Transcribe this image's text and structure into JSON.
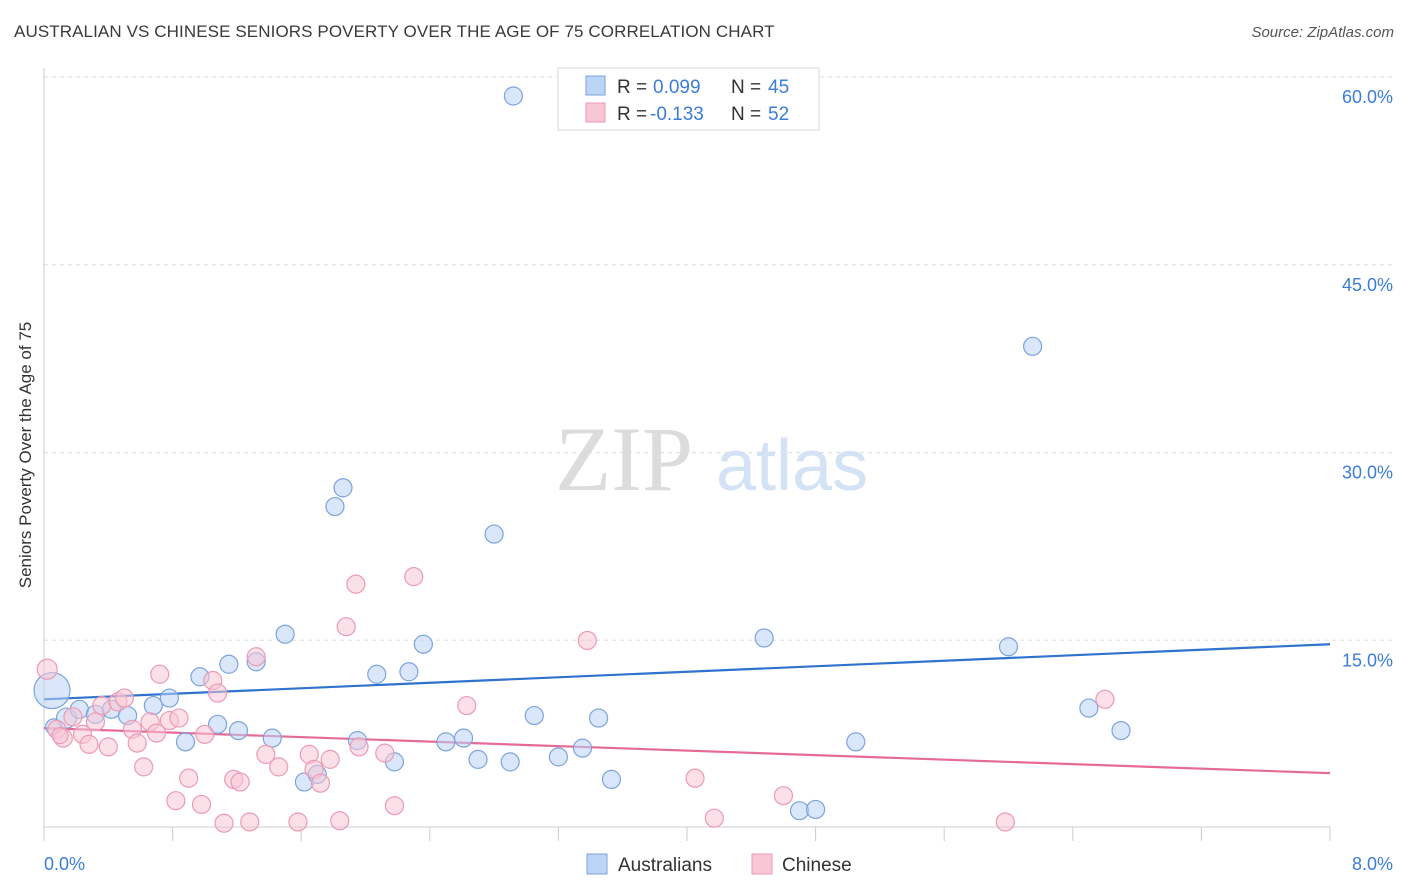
{
  "header": {
    "title": "AUSTRALIAN VS CHINESE SENIORS POVERTY OVER THE AGE OF 75 CORRELATION CHART",
    "source": "Source: ZipAtlas.com"
  },
  "watermark": {
    "zip": "ZIP",
    "atlas": "atlas"
  },
  "legend_top": [
    {
      "r_label": "R =",
      "r_value": "0.099",
      "n_label": "N =",
      "n_value": "45"
    },
    {
      "r_label": "R =",
      "r_value": "-0.133",
      "n_label": "N =",
      "n_value": "52"
    }
  ],
  "legend_bottom": [
    "Australians",
    "Chinese"
  ],
  "colors": {
    "australians_fill": "#bcd4f5",
    "australians_stroke": "#7ba3dc",
    "australians_line": "#2f73cf",
    "chinese_fill": "#f8c6d5",
    "chinese_stroke": "#ec9ab3",
    "chinese_line": "#e56b96",
    "axis_text": "#3b7dd8",
    "grid": "#dddddd"
  },
  "chart_data": {
    "type": "scatter",
    "title": "AUSTRALIAN VS CHINESE SENIORS POVERTY OVER THE AGE OF 75 CORRELATION CHART",
    "xlabel": "",
    "ylabel": "Seniors Poverty Over the Age of 75",
    "xlim": [
      0,
      8
    ],
    "ylim": [
      0,
      60
    ],
    "x_tick_labels": [
      "0.0%",
      "8.0%"
    ],
    "y_ticks": [
      15,
      30,
      45,
      60
    ],
    "y_tick_labels": [
      "15.0%",
      "30.0%",
      "45.0%",
      "60.0%"
    ],
    "grid": true,
    "series": [
      {
        "name": "Australians",
        "r": 0.099,
        "n": 45,
        "trend": [
          [
            0,
            11.8
          ],
          [
            8,
            16.2
          ]
        ],
        "points": [
          [
            0.05,
            12.5,
            18
          ],
          [
            0.14,
            10.3,
            10
          ],
          [
            0.22,
            11.0,
            9
          ],
          [
            0.32,
            10.6,
            9
          ],
          [
            0.42,
            11.0,
            9
          ],
          [
            0.52,
            10.5,
            9
          ],
          [
            0.68,
            11.3,
            9
          ],
          [
            0.78,
            11.9,
            9
          ],
          [
            0.88,
            8.4,
            9
          ],
          [
            0.97,
            13.6,
            9
          ],
          [
            1.08,
            9.8,
            9
          ],
          [
            1.15,
            14.6,
            9
          ],
          [
            1.21,
            9.3,
            9
          ],
          [
            1.32,
            14.8,
            9
          ],
          [
            1.42,
            8.7,
            9
          ],
          [
            1.5,
            17.0,
            9
          ],
          [
            1.62,
            5.2,
            9
          ],
          [
            1.7,
            5.8,
            9
          ],
          [
            1.81,
            27.2,
            9
          ],
          [
            1.86,
            28.7,
            9
          ],
          [
            1.95,
            8.5,
            9
          ],
          [
            2.07,
            13.8,
            9
          ],
          [
            2.18,
            6.8,
            9
          ],
          [
            2.27,
            14.0,
            9
          ],
          [
            2.36,
            16.2,
            9
          ],
          [
            2.5,
            8.4,
            9
          ],
          [
            2.61,
            8.7,
            9
          ],
          [
            2.7,
            7.0,
            9
          ],
          [
            2.8,
            25.0,
            9
          ],
          [
            2.9,
            6.8,
            9
          ],
          [
            2.92,
            60.0,
            9
          ],
          [
            3.05,
            10.5,
            9
          ],
          [
            3.2,
            7.2,
            9
          ],
          [
            3.35,
            7.9,
            9
          ],
          [
            3.45,
            10.3,
            9
          ],
          [
            3.53,
            5.4,
            9
          ],
          [
            4.48,
            16.7,
            9
          ],
          [
            4.7,
            2.9,
            9
          ],
          [
            4.8,
            3.0,
            9
          ],
          [
            5.05,
            8.4,
            9
          ],
          [
            6.0,
            16.0,
            9
          ],
          [
            6.15,
            40.0,
            9
          ],
          [
            6.5,
            11.1,
            9
          ],
          [
            6.7,
            9.3,
            9
          ],
          [
            0.06,
            9.6,
            8
          ]
        ]
      },
      {
        "name": "Chinese",
        "r": -0.133,
        "n": 52,
        "trend": [
          [
            0,
            9.5
          ],
          [
            8,
            5.9
          ]
        ],
        "points": [
          [
            0.02,
            14.2,
            10
          ],
          [
            0.08,
            9.4,
            9
          ],
          [
            0.12,
            8.7,
            9
          ],
          [
            0.18,
            10.4,
            9
          ],
          [
            0.24,
            9.0,
            9
          ],
          [
            0.28,
            8.2,
            9
          ],
          [
            0.32,
            10.0,
            9
          ],
          [
            0.36,
            11.3,
            9
          ],
          [
            0.4,
            8.0,
            9
          ],
          [
            0.46,
            11.6,
            9
          ],
          [
            0.5,
            11.9,
            9
          ],
          [
            0.55,
            9.4,
            9
          ],
          [
            0.58,
            8.3,
            9
          ],
          [
            0.62,
            6.4,
            9
          ],
          [
            0.66,
            10.0,
            9
          ],
          [
            0.7,
            9.1,
            9
          ],
          [
            0.72,
            13.8,
            9
          ],
          [
            0.78,
            10.1,
            9
          ],
          [
            0.82,
            3.7,
            9
          ],
          [
            0.84,
            10.3,
            9
          ],
          [
            0.9,
            5.5,
            9
          ],
          [
            0.98,
            3.4,
            9
          ],
          [
            1.0,
            9.0,
            9
          ],
          [
            1.05,
            13.3,
            9
          ],
          [
            1.08,
            12.3,
            9
          ],
          [
            1.12,
            1.9,
            9
          ],
          [
            1.18,
            5.4,
            9
          ],
          [
            1.22,
            5.2,
            9
          ],
          [
            1.28,
            2.0,
            9
          ],
          [
            1.32,
            15.2,
            9
          ],
          [
            1.38,
            7.4,
            9
          ],
          [
            1.46,
            6.4,
            9
          ],
          [
            1.58,
            2.0,
            9
          ],
          [
            1.65,
            7.4,
            9
          ],
          [
            1.68,
            6.2,
            9
          ],
          [
            1.72,
            5.1,
            9
          ],
          [
            1.78,
            7.0,
            9
          ],
          [
            1.84,
            2.1,
            9
          ],
          [
            1.88,
            17.6,
            9
          ],
          [
            1.94,
            21.0,
            9
          ],
          [
            1.96,
            8.0,
            9
          ],
          [
            2.12,
            7.5,
            9
          ],
          [
            2.18,
            3.3,
            9
          ],
          [
            2.3,
            21.6,
            9
          ],
          [
            2.63,
            11.3,
            9
          ],
          [
            3.38,
            16.5,
            9
          ],
          [
            4.05,
            5.5,
            9
          ],
          [
            4.17,
            2.3,
            9
          ],
          [
            4.6,
            4.1,
            9
          ],
          [
            5.98,
            2.0,
            9
          ],
          [
            6.6,
            11.8,
            9
          ],
          [
            0.1,
            8.9,
            8
          ]
        ]
      }
    ]
  }
}
